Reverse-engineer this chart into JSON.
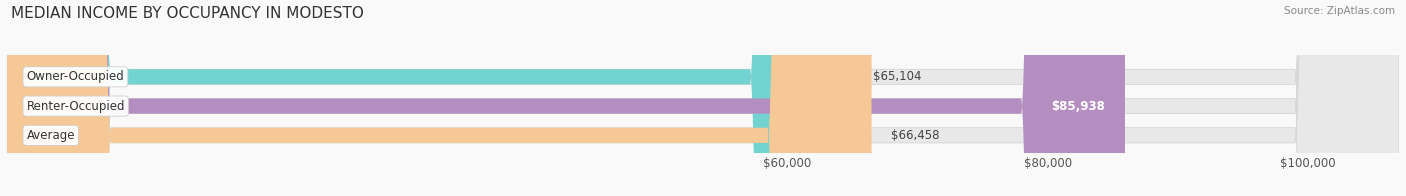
{
  "title": "MEDIAN INCOME BY OCCUPANCY IN MODESTO",
  "source": "Source: ZipAtlas.com",
  "categories": [
    "Owner-Occupied",
    "Renter-Occupied",
    "Average"
  ],
  "values": [
    65104,
    85938,
    66458
  ],
  "bar_colors": [
    "#72d3d0",
    "#b48ec0",
    "#f5c896"
  ],
  "track_color": "#e8e8e8",
  "value_labels": [
    "$65,104",
    "$85,938",
    "$66,458"
  ],
  "xmin": 0,
  "xmax": 107000,
  "xticks": [
    60000,
    80000,
    100000
  ],
  "xtick_labels": [
    "$60,000",
    "$80,000",
    "$100,000"
  ],
  "title_fontsize": 11,
  "label_fontsize": 8.5,
  "value_fontsize": 8.5,
  "bar_height": 0.52,
  "background_color": "#f9f9f9",
  "track_border_color": "#d0d0d0"
}
